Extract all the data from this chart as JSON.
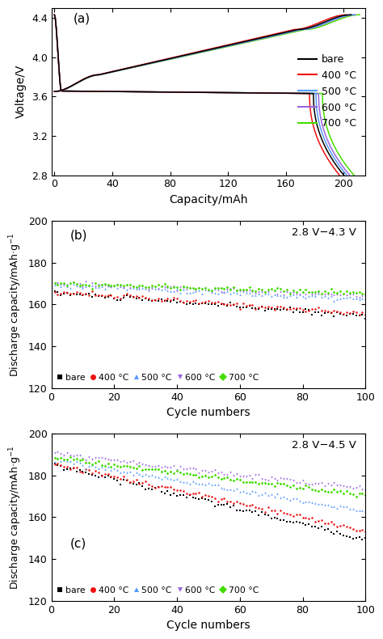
{
  "panel_a": {
    "title": "(a)",
    "ylabel": "Voltage/V",
    "xlabel": "Capacity/mAh",
    "ylim": [
      2.8,
      4.5
    ],
    "yticks": [
      2.8,
      3.2,
      3.6,
      4.0,
      4.4
    ],
    "xlim": [
      -2,
      215
    ],
    "xticks": [
      0,
      40,
      80,
      120,
      160,
      200
    ],
    "colors": {
      "bare": "#000000",
      "400": "#ee1111",
      "500": "#5599ff",
      "600": "#9966dd",
      "700": "#44dd00"
    },
    "legend_labels": [
      "bare",
      "400 °C",
      "500 °C",
      "600 °C",
      "700 °C"
    ],
    "dis_end": {
      "bare": 200,
      "400": 197,
      "500": 202,
      "600": 204,
      "700": 207
    },
    "ch_end": {
      "bare": 205,
      "400": 202,
      "500": 207,
      "600": 208,
      "700": 211
    }
  },
  "panel_b": {
    "title": "(b)",
    "annotation": "2.8 V−4.3 V",
    "xlabel": "Cycle numbers",
    "ylim": [
      120,
      200
    ],
    "yticks": [
      120,
      140,
      160,
      180,
      200
    ],
    "xlim": [
      0,
      100
    ],
    "xticks": [
      0,
      20,
      40,
      60,
      80,
      100
    ],
    "start_values": {
      "bare": 165.5,
      "400": 166.0,
      "500": 169.5,
      "600": 169.8,
      "700": 170.0
    },
    "end_values": {
      "bare": 154.5,
      "400": 155.5,
      "500": 162.5,
      "600": 164.0,
      "700": 165.5
    },
    "colors": {
      "bare": "#000000",
      "400": "#ee1111",
      "500": "#5599ff",
      "600": "#9966dd",
      "700": "#44dd00"
    }
  },
  "panel_c": {
    "title": "(c)",
    "annotation": "2.8 V−4.5 V",
    "xlabel": "Cycle numbers",
    "ylim": [
      120,
      200
    ],
    "yticks": [
      120,
      140,
      160,
      180,
      200
    ],
    "xlim": [
      0,
      100
    ],
    "xticks": [
      0,
      20,
      40,
      60,
      80,
      100
    ],
    "start_values": {
      "bare": 185.0,
      "400": 185.5,
      "500": 187.5,
      "600": 190.0,
      "700": 188.5
    },
    "end_values": {
      "bare": 149.5,
      "400": 153.5,
      "500": 163.0,
      "600": 173.5,
      "700": 170.5
    },
    "colors": {
      "bare": "#000000",
      "400": "#ee1111",
      "500": "#5599ff",
      "600": "#9966dd",
      "700": "#44dd00"
    }
  },
  "legend_markers": {
    "bare": "s",
    "400": "o",
    "500": "^",
    "600": "v",
    "700": "D"
  },
  "legend_labels": [
    "bare",
    "400 °C",
    "500 °C",
    "600 °C",
    "700 °C"
  ],
  "keys": [
    "bare",
    "400",
    "500",
    "600",
    "700"
  ]
}
